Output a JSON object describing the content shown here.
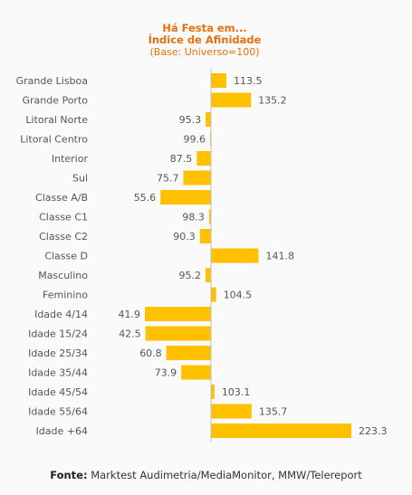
{
  "chart_data": {
    "type": "bar",
    "orientation": "horizontal",
    "title": "Há Festa em...",
    "subtitle": "Índice de Afinidade",
    "note": "(Base: Universo=100)",
    "baseline": 100,
    "colors": {
      "bar": "#ffc000",
      "title": "#e8700a",
      "text": "#555555",
      "axis": "#c0c0c0"
    },
    "categories": [
      "Grande Lisboa",
      "Grande Porto",
      "Litoral Norte",
      "Litoral Centro",
      "Interior",
      "Sul",
      "Classe A/B",
      "Classe C1",
      "Classe C2",
      "Classe D",
      "Masculino",
      "Feminino",
      "Idade 4/14",
      "Idade 15/24",
      "Idade 25/34",
      "Idade 35/44",
      "Idade 45/54",
      "Idade 55/64",
      "Idade +64"
    ],
    "values": [
      113.5,
      135.2,
      95.3,
      99.6,
      87.5,
      75.7,
      55.6,
      98.3,
      90.3,
      141.8,
      95.2,
      104.5,
      41.9,
      42.5,
      60.8,
      73.9,
      103.1,
      135.7,
      223.3
    ],
    "labels": [
      "113.5",
      "135.2",
      "95.3",
      "99.6",
      "87.5",
      "75.7",
      "55.6",
      "98.3",
      "90.3",
      "141.8",
      "95.2",
      "104.5",
      "41.9",
      "42.5",
      "60.8",
      "73.9",
      "103.1",
      "135.7",
      "223.3"
    ]
  },
  "footer": {
    "label": "Fonte:",
    "text": " Marktest Audimetria/MediaMonitor, MMW/Telereport"
  }
}
